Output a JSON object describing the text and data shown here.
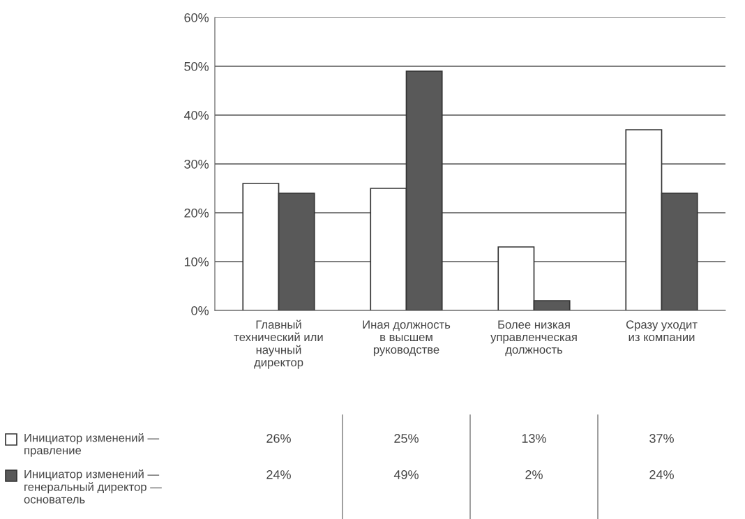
{
  "chart_data": {
    "type": "bar",
    "categories": [
      "Главный\nтехнический или\nнаучный\nдиректор",
      "Иная должность\nв высшем\nруководстве",
      "Более низкая\nуправленческая\nдолжность",
      "Сразу уходит\nиз компании"
    ],
    "series": [
      {
        "name": "Инициатор изменений —\nправление",
        "color": "#ffffff",
        "values": [
          26,
          25,
          13,
          37
        ],
        "value_labels": [
          "26%",
          "25%",
          "13%",
          "37%"
        ]
      },
      {
        "name": "Инициатор изменений —\nгенеральный директор —\nоснователь",
        "color": "#595959",
        "values": [
          24,
          49,
          2,
          24
        ],
        "value_labels": [
          "24%",
          "49%",
          "2%",
          "24%"
        ]
      }
    ],
    "ylim": [
      0,
      60
    ],
    "yticks": [
      {
        "value": 0,
        "label": "0%"
      },
      {
        "value": 10,
        "label": "10%"
      },
      {
        "value": 20,
        "label": "20%"
      },
      {
        "value": 30,
        "label": "30%"
      },
      {
        "value": 40,
        "label": "40%"
      },
      {
        "value": 50,
        "label": "50%"
      },
      {
        "value": 60,
        "label": "60%"
      }
    ],
    "grid": "y",
    "legend": "bottom left"
  }
}
